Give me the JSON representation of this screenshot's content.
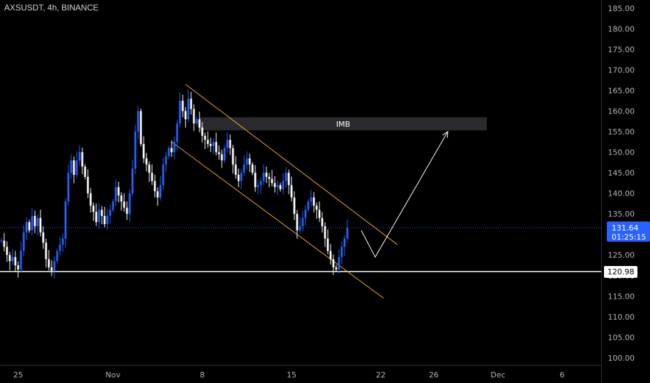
{
  "header": {
    "title": "AXSUSDT, 4h, BINANCE"
  },
  "colors": {
    "background": "#000000",
    "candle": "#2962ff",
    "candle_alt": "#ffffff",
    "channel": "#f5a623",
    "support": "#ffffff",
    "projection": "#ffffff",
    "price_line": "#2962ff",
    "imb_fill": "#2a2a2e"
  },
  "price_tags": {
    "current_price": "131.64",
    "countdown": "01:25:15",
    "support_price": "120.98"
  },
  "annotations": {
    "imb_label": "IMB"
  },
  "chart_data": {
    "type": "candlestick",
    "symbol": "AXSUSDT",
    "interval": "4h",
    "exchange": "BINANCE",
    "y_axis": {
      "range": [
        98,
        187
      ],
      "ticks": [
        "100.00",
        "105.00",
        "110.00",
        "115.00",
        "120.00",
        "125.00",
        "130.00",
        "135.00",
        "140.00",
        "145.00",
        "150.00",
        "155.00",
        "160.00",
        "165.00",
        "170.00",
        "175.00",
        "180.00",
        "185.00"
      ]
    },
    "x_axis": {
      "ticks": [
        {
          "label": "25",
          "index": 6
        },
        {
          "label": "Nov",
          "index": 40
        },
        {
          "label": "8",
          "index": 72
        },
        {
          "label": "15",
          "index": 104
        },
        {
          "label": "22",
          "index": 136
        },
        {
          "label": "26",
          "index": 155
        },
        {
          "label": "Dec",
          "index": 178
        },
        {
          "label": "6",
          "index": 201
        }
      ]
    },
    "price_range_start": 128.5,
    "support_level": 120.98,
    "current_price": 131.64,
    "imb_zone": {
      "from_index": 71,
      "to_index": 174,
      "top": 158.5,
      "bottom": 155.3
    },
    "channel": {
      "upper": [
        {
          "index": 66,
          "price": 166.5
        },
        {
          "index": 142,
          "price": 127.5
        }
      ],
      "lower": [
        {
          "index": 61,
          "price": 152.5
        },
        {
          "index": 137,
          "price": 114.5
        }
      ]
    },
    "projection_path": [
      {
        "index": 129,
        "price": 131.0
      },
      {
        "index": 134,
        "price": 124.5
      },
      {
        "index": 160,
        "price": 155.0
      }
    ],
    "closes": [
      128.5,
      127,
      125,
      123.5,
      124.5,
      122.5,
      121.5,
      126,
      130.5,
      133,
      131,
      134.5,
      132,
      134,
      130.5,
      128,
      124,
      122,
      121.2,
      123.5,
      126,
      127.5,
      129,
      138,
      145,
      148,
      144.5,
      148,
      150,
      146.5,
      144,
      140,
      137,
      135.5,
      133,
      136,
      134.5,
      132.5,
      134.5,
      136,
      138,
      141.5,
      139.5,
      138,
      136.5,
      135,
      140,
      146,
      155,
      160,
      152,
      148.5,
      147,
      145,
      143,
      140.5,
      139,
      142,
      147,
      149,
      151,
      150,
      152.5,
      157,
      162.5,
      160,
      158,
      163,
      160.5,
      157,
      158,
      156,
      154,
      153,
      152,
      151.5,
      152.5,
      150,
      149.5,
      148,
      151,
      153,
      151,
      147,
      144.5,
      143,
      145,
      147,
      148.5,
      147,
      145,
      141.5,
      142,
      143,
      145,
      144,
      143.5,
      142.5,
      141.5,
      142,
      141,
      143,
      145,
      142,
      139,
      135,
      131,
      132,
      134,
      136,
      138,
      139,
      137,
      136,
      134,
      132,
      129,
      126,
      124,
      122,
      121.5,
      124.5,
      127,
      129,
      131.64
    ]
  }
}
